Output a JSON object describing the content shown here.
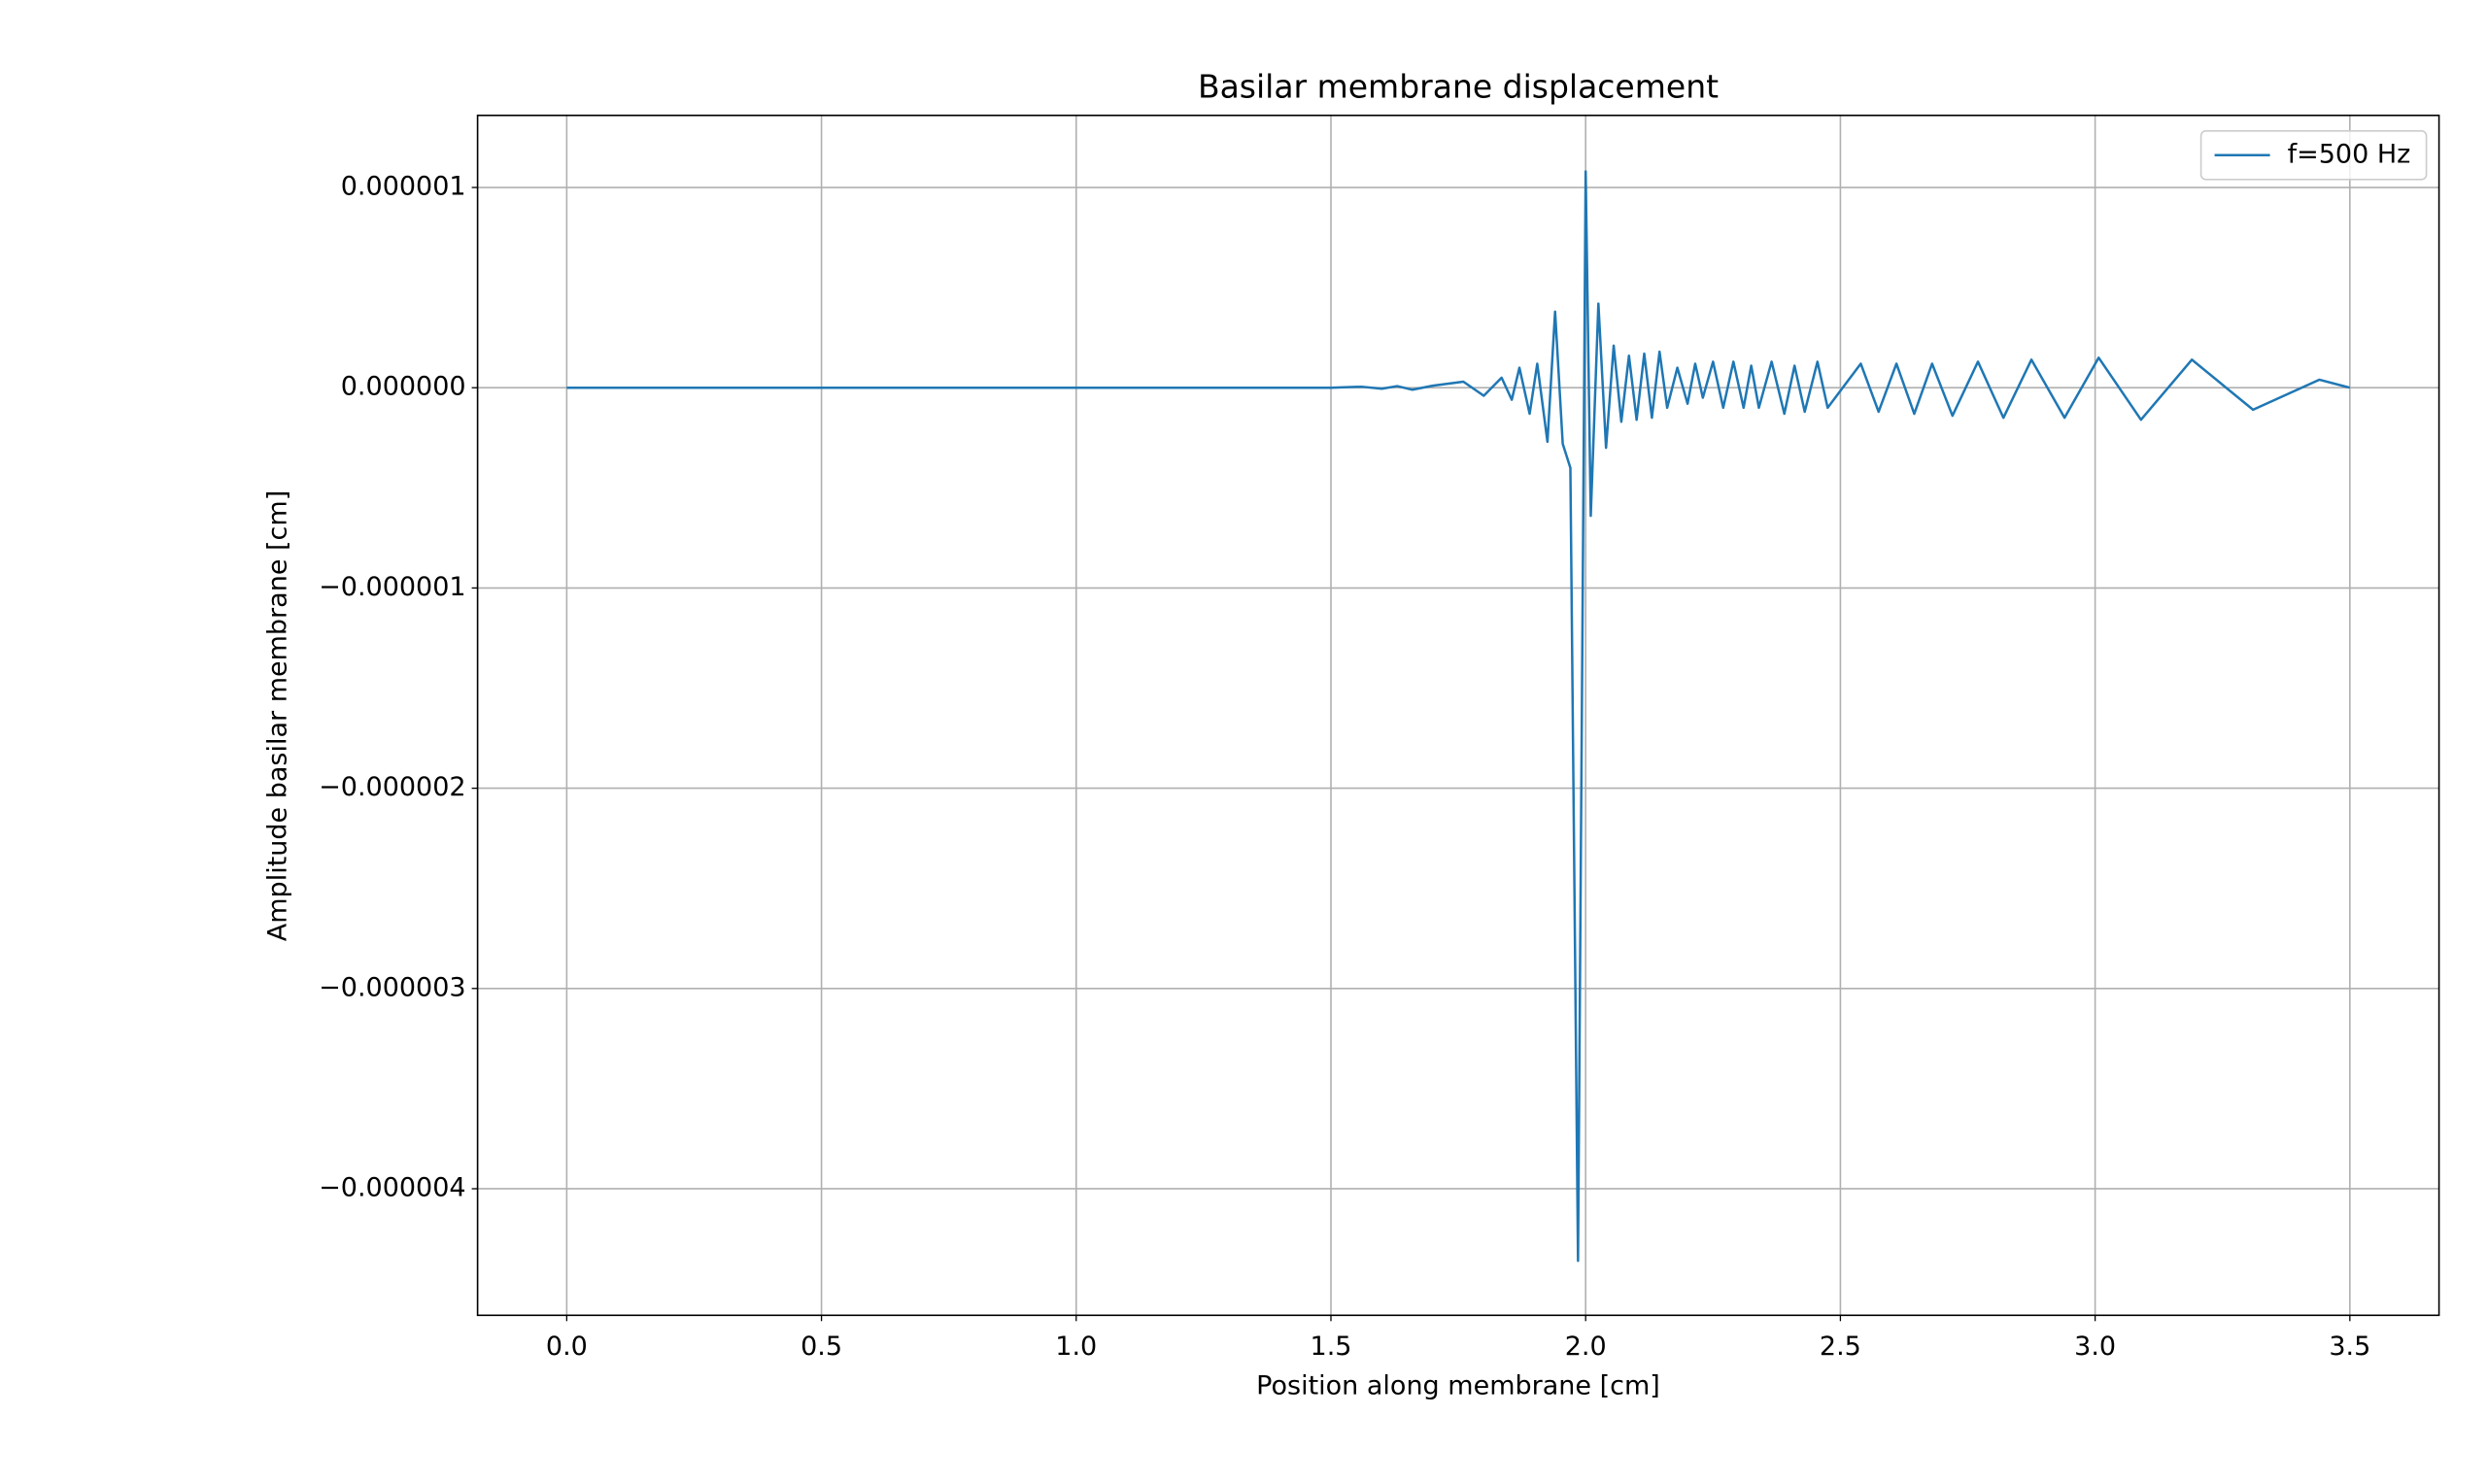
{
  "chart_data": {
    "type": "line",
    "title": "Basilar membrane displacement",
    "x_label": "Position along membrane [cm]",
    "y_label": "Amplitude basilar membrane [cm]",
    "grid": true,
    "legend": "upper right",
    "xlim": [
      -0.175,
      3.675
    ],
    "ylim": [
      -4.632e-06,
      1.36e-06
    ],
    "xticks": [
      {
        "value": 0,
        "label": "0.0"
      },
      0.5,
      {
        "value": 1,
        "label": "1.0"
      },
      1.5,
      {
        "value": 2,
        "label": "2.0"
      },
      2.5,
      {
        "value": 3,
        "label": "3.0"
      },
      3.5
    ],
    "yticks": [
      {
        "value": -4e-06,
        "label": "−0.000004"
      },
      {
        "value": -3e-06,
        "label": "−0.000003"
      },
      {
        "value": -2e-06,
        "label": "−0.000002"
      },
      {
        "value": -1e-06,
        "label": "−0.000001"
      },
      {
        "value": 0,
        "label": "0.000000"
      },
      {
        "value": 1e-06,
        "label": "0.000001"
      }
    ],
    "x": [
      0,
      0.5,
      1.0,
      1.2,
      1.3,
      1.4,
      1.5,
      1.56,
      1.6,
      1.63,
      1.66,
      1.7,
      1.76,
      1.8,
      1.835,
      1.855,
      1.87,
      1.89,
      1.905,
      1.925,
      1.94,
      1.955,
      1.97,
      1.985,
      2.0,
      2.01,
      2.025,
      2.04,
      2.055,
      2.07,
      2.085,
      2.1,
      2.115,
      2.13,
      2.145,
      2.16,
      2.18,
      2.2,
      2.215,
      2.23,
      2.25,
      2.27,
      2.29,
      2.31,
      2.325,
      2.34,
      2.365,
      2.39,
      2.41,
      2.43,
      2.455,
      2.475,
      2.54,
      2.575,
      2.61,
      2.645,
      2.68,
      2.72,
      2.77,
      2.82,
      2.875,
      2.94,
      3.007,
      3.09,
      3.19,
      3.31,
      3.44,
      3.5
    ],
    "series": [
      {
        "name": "f=500 Hz",
        "color": "#1f77b4",
        "values": [
          0,
          0,
          0,
          0,
          0,
          0,
          0,
          5e-09,
          -5e-09,
          8e-09,
          -1e-08,
          1e-08,
          3e-08,
          -4e-08,
          5e-08,
          -6e-08,
          1e-07,
          -1.3e-07,
          1.2e-07,
          -2.7e-07,
          3.8e-07,
          -2.8e-07,
          -4e-07,
          -4.36e-06,
          1.08e-06,
          -6.4e-07,
          4.2e-07,
          -3e-07,
          2.1e-07,
          -1.7e-07,
          1.6e-07,
          -1.6e-07,
          1.7e-07,
          -1.5e-07,
          1.8e-07,
          -1e-07,
          1e-07,
          -8e-08,
          1.2e-07,
          -5e-08,
          1.3e-07,
          -1e-07,
          1.3e-07,
          -1e-07,
          1.1e-07,
          -1e-07,
          1.3e-07,
          -1.3e-07,
          1.1e-07,
          -1.2e-07,
          1.3e-07,
          -1e-07,
          1.2e-07,
          -1.2e-07,
          1.2e-07,
          -1.3e-07,
          1.2e-07,
          -1.4e-07,
          1.3e-07,
          -1.5e-07,
          1.4e-07,
          -1.5e-07,
          1.5e-07,
          -1.6e-07,
          1.4e-07,
          -1.1e-07,
          4e-08,
          0
        ]
      }
    ]
  }
}
